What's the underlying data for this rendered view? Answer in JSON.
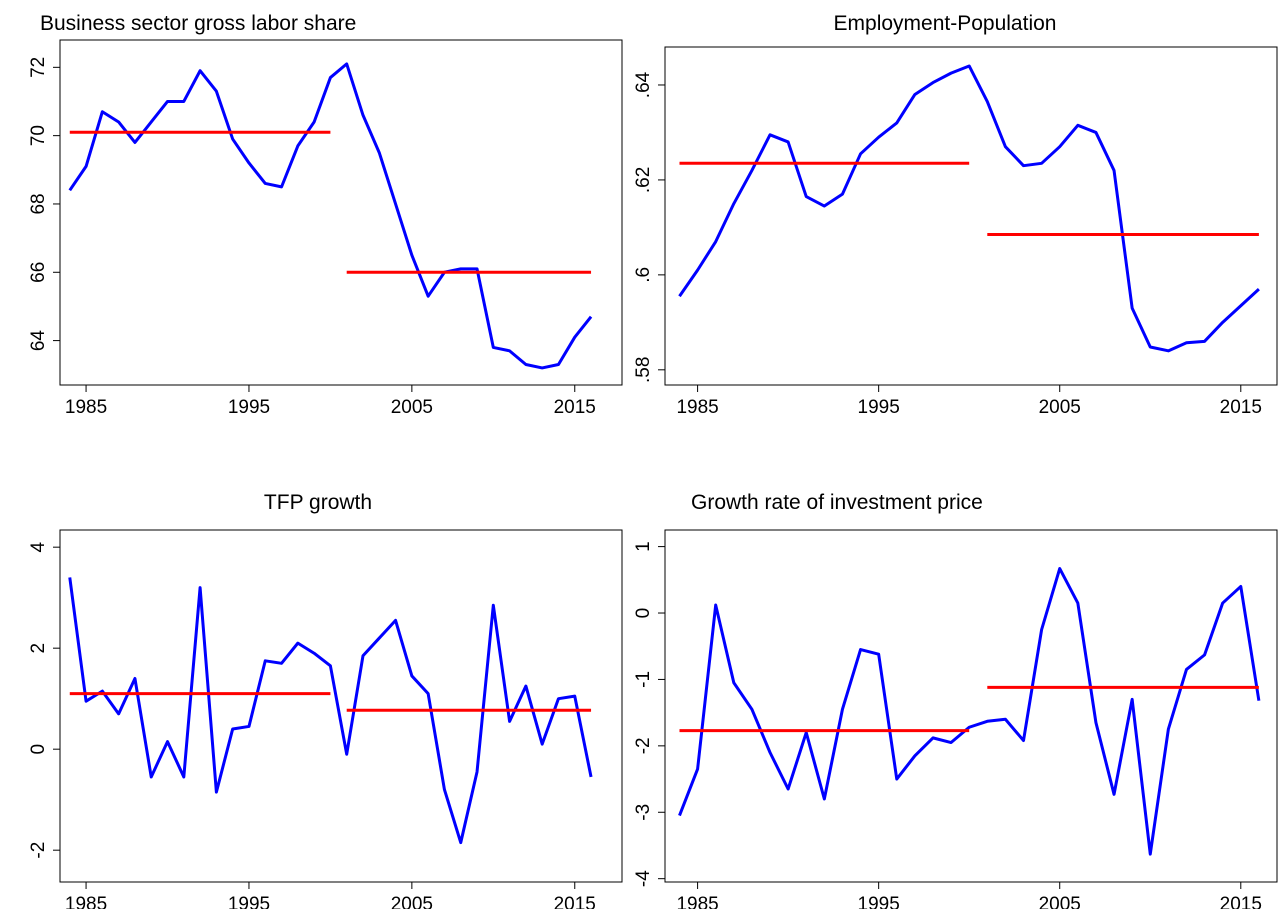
{
  "chart_data": [
    {
      "type": "line",
      "title": "Business sector gross labor share",
      "x": [
        1984,
        1985,
        1986,
        1987,
        1988,
        1989,
        1990,
        1991,
        1992,
        1993,
        1994,
        1995,
        1996,
        1997,
        1998,
        1999,
        2000,
        2001,
        2002,
        2003,
        2004,
        2005,
        2006,
        2007,
        2008,
        2009,
        2010,
        2011,
        2012,
        2013,
        2014,
        2015,
        2016
      ],
      "series": [
        {
          "color": "#0000ff",
          "values": [
            68.4,
            69.1,
            70.7,
            70.4,
            69.8,
            70.4,
            71.0,
            71.0,
            71.9,
            71.3,
            69.9,
            69.2,
            68.6,
            68.5,
            69.7,
            70.4,
            71.7,
            72.1,
            70.6,
            69.5,
            68.0,
            66.5,
            65.3,
            66.0,
            66.1,
            66.1,
            63.8,
            63.7,
            63.3,
            63.2,
            63.3,
            64.1,
            64.7
          ]
        },
        {
          "color": "#ff0000",
          "values": [
            70.1,
            70.1,
            70.1,
            70.1,
            70.1,
            70.1,
            70.1,
            70.1,
            70.1,
            70.1,
            70.1,
            70.1,
            70.1,
            70.1,
            70.1,
            70.1,
            70.1,
            null,
            null,
            null,
            null,
            null,
            null,
            null,
            null,
            null,
            null,
            null,
            null,
            null,
            null,
            null,
            null
          ]
        },
        {
          "color": "#ff0000",
          "values": [
            null,
            null,
            null,
            null,
            null,
            null,
            null,
            null,
            null,
            null,
            null,
            null,
            null,
            null,
            null,
            null,
            null,
            66.0,
            66.0,
            66.0,
            66.0,
            66.0,
            66.0,
            66.0,
            66.0,
            66.0,
            66.0,
            66.0,
            66.0,
            66.0,
            66.0,
            66.0,
            66.0
          ]
        }
      ],
      "xlim": [
        1983.4,
        2017.9
      ],
      "xticks": [
        1985,
        1995,
        2005,
        2015
      ],
      "ylim": [
        62.7,
        72.8
      ],
      "yticks": [
        64,
        66,
        68,
        70,
        72
      ]
    },
    {
      "type": "line",
      "title": "Employment-Population",
      "x": [
        1984,
        1985,
        1986,
        1987,
        1988,
        1989,
        1990,
        1991,
        1992,
        1993,
        1994,
        1995,
        1996,
        1997,
        1998,
        1999,
        2000,
        2001,
        2002,
        2003,
        2004,
        2005,
        2006,
        2007,
        2008,
        2009,
        2010,
        2011,
        2012,
        2013,
        2014,
        2015,
        2016
      ],
      "series": [
        {
          "color": "#0000ff",
          "values": [
            0.5955,
            0.601,
            0.607,
            0.615,
            0.622,
            0.6295,
            0.628,
            0.6165,
            0.6145,
            0.617,
            0.6255,
            0.629,
            0.632,
            0.638,
            0.6405,
            0.6425,
            0.644,
            0.6365,
            0.627,
            0.623,
            0.6235,
            0.627,
            0.6315,
            0.63,
            0.622,
            0.593,
            0.5848,
            0.584,
            0.5857,
            0.586,
            0.59,
            0.5935,
            0.597
          ]
        },
        {
          "color": "#ff0000",
          "values": [
            0.6235,
            0.6235,
            0.6235,
            0.6235,
            0.6235,
            0.6235,
            0.6235,
            0.6235,
            0.6235,
            0.6235,
            0.6235,
            0.6235,
            0.6235,
            0.6235,
            0.6235,
            0.6235,
            0.6235,
            null,
            null,
            null,
            null,
            null,
            null,
            null,
            null,
            null,
            null,
            null,
            null,
            null,
            null,
            null,
            null
          ]
        },
        {
          "color": "#ff0000",
          "values": [
            null,
            null,
            null,
            null,
            null,
            null,
            null,
            null,
            null,
            null,
            null,
            null,
            null,
            null,
            null,
            null,
            null,
            0.6085,
            0.6085,
            0.6085,
            0.6085,
            0.6085,
            0.6085,
            0.6085,
            0.6085,
            0.6085,
            0.6085,
            0.6085,
            0.6085,
            0.6085,
            0.6085,
            0.6085,
            0.6085
          ]
        }
      ],
      "xlim": [
        1983.2,
        2017
      ],
      "xticks": [
        1985,
        1995,
        2005,
        2015
      ],
      "ylim": [
        0.5768,
        0.648
      ],
      "yticks": [
        {
          "value": 0.58,
          "label": ".58"
        },
        {
          "value": 0.6,
          "label": ".6"
        },
        {
          "value": 0.62,
          "label": ".62"
        },
        {
          "value": 0.64,
          "label": ".64"
        }
      ]
    },
    {
      "type": "line",
      "title": "TFP growth",
      "x": [
        1984,
        1985,
        1986,
        1987,
        1988,
        1989,
        1990,
        1991,
        1992,
        1993,
        1994,
        1995,
        1996,
        1997,
        1998,
        1999,
        2000,
        2001,
        2002,
        2003,
        2004,
        2005,
        2006,
        2007,
        2008,
        2009,
        2010,
        2011,
        2012,
        2013,
        2014,
        2015,
        2016
      ],
      "series": [
        {
          "color": "#0000ff",
          "values": [
            3.4,
            0.95,
            1.15,
            0.7,
            1.4,
            -0.55,
            0.15,
            -0.55,
            3.2,
            -0.85,
            0.4,
            0.45,
            1.75,
            1.7,
            2.1,
            1.9,
            1.65,
            -0.1,
            1.85,
            2.2,
            2.55,
            1.45,
            1.1,
            -0.8,
            -1.85,
            -0.45,
            2.85,
            0.55,
            1.25,
            0.1,
            1.0,
            1.05,
            -0.55
          ]
        },
        {
          "color": "#ff0000",
          "values": [
            1.1,
            1.1,
            1.1,
            1.1,
            1.1,
            1.1,
            1.1,
            1.1,
            1.1,
            1.1,
            1.1,
            1.1,
            1.1,
            1.1,
            1.1,
            1.1,
            1.1,
            null,
            null,
            null,
            null,
            null,
            null,
            null,
            null,
            null,
            null,
            null,
            null,
            null,
            null,
            null,
            null
          ]
        },
        {
          "color": "#ff0000",
          "values": [
            null,
            null,
            null,
            null,
            null,
            null,
            null,
            null,
            null,
            null,
            null,
            null,
            null,
            null,
            null,
            null,
            null,
            0.77,
            0.77,
            0.77,
            0.77,
            0.77,
            0.77,
            0.77,
            0.77,
            0.77,
            0.77,
            0.77,
            0.77,
            0.77,
            0.77,
            0.77,
            0.77
          ]
        }
      ],
      "xlim": [
        1983.4,
        2017.9
      ],
      "xticks": [
        1985,
        1995,
        2005,
        2015
      ],
      "ylim": [
        -2.63,
        4.34
      ],
      "yticks": [
        -2,
        0,
        2,
        4
      ]
    },
    {
      "type": "line",
      "title": "Growth rate of investment price",
      "x": [
        1984,
        1985,
        1986,
        1987,
        1988,
        1989,
        1990,
        1991,
        1992,
        1993,
        1994,
        1995,
        1996,
        1997,
        1998,
        1999,
        2000,
        2001,
        2002,
        2003,
        2004,
        2005,
        2006,
        2007,
        2008,
        2009,
        2010,
        2011,
        2012,
        2013,
        2014,
        2015,
        2016
      ],
      "series": [
        {
          "color": "#0000ff",
          "values": [
            -3.05,
            -2.35,
            0.12,
            -1.05,
            -1.45,
            -2.1,
            -2.65,
            -1.8,
            -2.8,
            -1.45,
            -0.55,
            -0.62,
            -2.5,
            -2.15,
            -1.88,
            -1.95,
            -1.72,
            -1.63,
            -1.6,
            -1.92,
            -0.25,
            0.67,
            0.15,
            -1.65,
            -2.73,
            -1.3,
            -3.63,
            -1.75,
            -0.85,
            -0.63,
            0.15,
            0.4,
            -1.32
          ]
        },
        {
          "color": "#ff0000",
          "values": [
            -1.77,
            -1.77,
            -1.77,
            -1.77,
            -1.77,
            -1.77,
            -1.77,
            -1.77,
            -1.77,
            -1.77,
            -1.77,
            -1.77,
            -1.77,
            -1.77,
            -1.77,
            -1.77,
            -1.77,
            null,
            null,
            null,
            null,
            null,
            null,
            null,
            null,
            null,
            null,
            null,
            null,
            null,
            null,
            null,
            null
          ]
        },
        {
          "color": "#ff0000",
          "values": [
            null,
            null,
            null,
            null,
            null,
            null,
            null,
            null,
            null,
            null,
            null,
            null,
            null,
            null,
            null,
            null,
            null,
            -1.12,
            -1.12,
            -1.12,
            -1.12,
            -1.12,
            -1.12,
            -1.12,
            -1.12,
            -1.12,
            -1.12,
            -1.12,
            -1.12,
            -1.12,
            -1.12,
            -1.12,
            -1.12
          ]
        }
      ],
      "xlim": [
        1983.2,
        2017
      ],
      "xticks": [
        1985,
        1995,
        2005,
        2015
      ],
      "ylim": [
        -4.05,
        1.25
      ],
      "yticks": [
        -4,
        -3,
        -2,
        -1,
        0,
        1
      ]
    }
  ]
}
